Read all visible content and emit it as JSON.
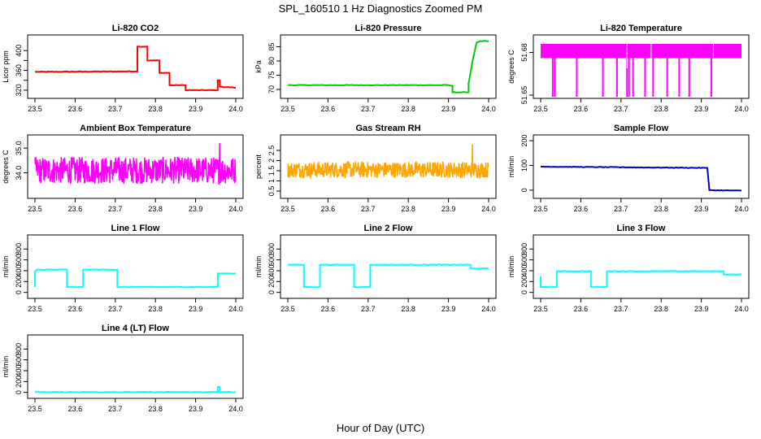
{
  "title": "SPL_160510  1 Hz Diagnostics Zoomed PM",
  "xlabel": "Hour of Day (UTC)",
  "chart_data": [
    {
      "type": "line",
      "title": "Li-820 CO2",
      "ylabel": "Licor ppm",
      "color": "#ff0000",
      "xlim": [
        23.5,
        24.0
      ],
      "ylim": [
        310,
        425
      ],
      "xticks": [
        "23.5",
        "23.6",
        "23.7",
        "23.8",
        "23.9",
        "24.0"
      ],
      "yticks": [
        320,
        340,
        360,
        380,
        400
      ],
      "ytick_labels": [
        "320",
        "",
        "360",
        "",
        "400"
      ],
      "series": [
        {
          "x": [
            23.5,
            23.755,
            23.755,
            23.78,
            23.78,
            23.81,
            23.81,
            23.835,
            23.835,
            23.875,
            23.875,
            23.9,
            23.9,
            23.955,
            23.955,
            23.96,
            23.96,
            24.0
          ],
          "values": [
            357,
            358,
            408,
            408,
            380,
            380,
            355,
            355,
            330,
            330,
            320,
            320,
            320,
            320,
            340,
            340,
            327,
            325
          ]
        }
      ]
    },
    {
      "type": "line",
      "title": "Li-820 Pressure",
      "ylabel": "kPa",
      "color": "#00cc00",
      "xlim": [
        23.5,
        24.0
      ],
      "ylim": [
        68,
        88
      ],
      "xticks": [
        "23.5",
        "23.6",
        "23.7",
        "23.8",
        "23.9",
        "24.0"
      ],
      "yticks": [
        70,
        75,
        80,
        85
      ],
      "ytick_labels": [
        "70",
        "75",
        "80",
        "85"
      ],
      "series": [
        {
          "x": [
            23.5,
            23.9,
            23.91,
            23.91,
            23.95,
            23.95,
            23.96,
            23.97,
            23.98,
            24.0
          ],
          "values": [
            71.5,
            71.5,
            71.3,
            69,
            69,
            72,
            80,
            86.5,
            87,
            87
          ]
        }
      ]
    },
    {
      "type": "line",
      "title": "Li-820 Temperature",
      "ylabel": "degrees C",
      "color": "#ff00ff",
      "xlim": [
        23.5,
        24.0
      ],
      "ylim": [
        51.65,
        51.69
      ],
      "xticks": [
        "23.5",
        "23.6",
        "23.7",
        "23.8",
        "23.9",
        "24.0"
      ],
      "yticks": [
        51.65,
        51.68
      ],
      "ytick_labels": [
        "51.65",
        "51.68"
      ],
      "band": [
        51.676,
        51.686
      ],
      "dips": [
        23.53,
        23.535,
        23.59,
        23.655,
        23.69,
        23.715,
        23.72,
        23.73,
        23.76,
        23.78,
        23.815,
        23.845,
        23.87,
        23.925
      ]
    },
    {
      "type": "line",
      "title": "Ambient Box Temperature",
      "ylabel": "degrees C",
      "color": "#ff00ff",
      "xlim": [
        23.5,
        24.0
      ],
      "ylim": [
        33.1,
        35.4
      ],
      "xticks": [
        "23.5",
        "23.6",
        "23.7",
        "23.8",
        "23.9",
        "24.0"
      ],
      "yticks": [
        34.0,
        35.0
      ],
      "ytick_labels": [
        "34.0",
        "35.0"
      ],
      "noise": {
        "center": 34.1,
        "amplitude": 0.55,
        "peak": 35.2
      }
    },
    {
      "type": "line",
      "title": "Gas Stream RH",
      "ylabel": "percent",
      "color": "#ffa500",
      "xlim": [
        23.5,
        24.0
      ],
      "ylim": [
        0.3,
        3.1
      ],
      "xticks": [
        "23.5",
        "23.6",
        "23.7",
        "23.8",
        "23.9",
        "24.0"
      ],
      "yticks": [
        0.5,
        1.0,
        1.5,
        2.0,
        2.5
      ],
      "ytick_labels": [
        "0.5",
        "1",
        "1.5",
        "2",
        "2.5"
      ],
      "noise": {
        "center": 1.55,
        "amplitude": 0.4,
        "peak": 2.8
      }
    },
    {
      "type": "line",
      "title": "Sample Flow",
      "ylabel": "ml/min",
      "color": "#0000cc",
      "xlim": [
        23.5,
        24.0
      ],
      "ylim": [
        -20,
        210
      ],
      "xticks": [
        "23.5",
        "23.6",
        "23.7",
        "23.8",
        "23.9",
        "24.0"
      ],
      "yticks": [
        0,
        100,
        200
      ],
      "ytick_labels": [
        "0",
        "100",
        "200"
      ],
      "series": [
        {
          "x": [
            23.5,
            23.91,
            23.915,
            23.92,
            24.0
          ],
          "values": [
            95,
            90,
            90,
            0,
            -2
          ]
        }
      ]
    },
    {
      "type": "line",
      "title": "Line 1 Flow",
      "ylabel": "ml/min",
      "color": "#00ffff",
      "xlim": [
        23.5,
        24.0
      ],
      "ylim": [
        -50,
        1000
      ],
      "xticks": [
        "23.5",
        "23.6",
        "23.7",
        "23.8",
        "23.9",
        "24.0"
      ],
      "yticks": [
        0,
        200,
        400,
        600,
        800
      ],
      "ytick_labels": [
        "0",
        "200",
        "400",
        "600",
        "800"
      ],
      "series": [
        {
          "x": [
            23.5,
            23.5,
            23.505,
            23.58,
            23.58,
            23.62,
            23.62,
            23.705,
            23.705,
            23.955,
            23.955,
            24.0
          ],
          "values": [
            100,
            380,
            420,
            420,
            100,
            100,
            420,
            420,
            100,
            100,
            350,
            350
          ]
        }
      ]
    },
    {
      "type": "line",
      "title": "Line 2 Flow",
      "ylabel": "ml/min",
      "color": "#00ffff",
      "xlim": [
        23.5,
        24.0
      ],
      "ylim": [
        -50,
        1000
      ],
      "xticks": [
        "23.5",
        "23.6",
        "23.7",
        "23.8",
        "23.9",
        "24.0"
      ],
      "yticks": [
        0,
        200,
        400,
        600,
        800
      ],
      "ytick_labels": [
        "0",
        "200",
        "400",
        "600",
        "800"
      ],
      "series": [
        {
          "x": [
            23.5,
            23.54,
            23.54,
            23.58,
            23.58,
            23.665,
            23.665,
            23.705,
            23.705,
            23.955,
            23.955,
            24.0
          ],
          "values": [
            510,
            510,
            100,
            100,
            510,
            510,
            100,
            100,
            510,
            510,
            440,
            440
          ]
        }
      ]
    },
    {
      "type": "line",
      "title": "Line 3 Flow",
      "ylabel": "ml/min",
      "color": "#00ffff",
      "xlim": [
        23.5,
        24.0
      ],
      "ylim": [
        -50,
        1000
      ],
      "xticks": [
        "23.5",
        "23.6",
        "23.7",
        "23.8",
        "23.9",
        "24.0"
      ],
      "yticks": [
        0,
        200,
        400,
        600,
        800
      ],
      "ytick_labels": [
        "0",
        "200",
        "400",
        "600",
        "800"
      ],
      "series": [
        {
          "x": [
            23.5,
            23.5,
            23.505,
            23.54,
            23.54,
            23.625,
            23.625,
            23.665,
            23.665,
            23.955,
            23.955,
            24.0
          ],
          "values": [
            300,
            100,
            100,
            100,
            390,
            390,
            100,
            100,
            390,
            390,
            330,
            330
          ]
        }
      ]
    },
    {
      "type": "line",
      "title": "Line 4 (LT) Flow",
      "ylabel": "ml/min",
      "color": "#00ffff",
      "xlim": [
        23.5,
        24.0
      ],
      "ylim": [
        -50,
        1000
      ],
      "xticks": [
        "23.5",
        "23.6",
        "23.7",
        "23.8",
        "23.9",
        "24.0"
      ],
      "yticks": [
        0,
        200,
        400,
        600,
        800
      ],
      "ytick_labels": [
        "0",
        "200",
        "400",
        "600",
        "800"
      ],
      "series": [
        {
          "x": [
            23.5,
            23.955,
            23.955,
            23.96,
            23.96,
            24.0
          ],
          "values": [
            5,
            5,
            100,
            100,
            5,
            5
          ]
        }
      ]
    }
  ]
}
